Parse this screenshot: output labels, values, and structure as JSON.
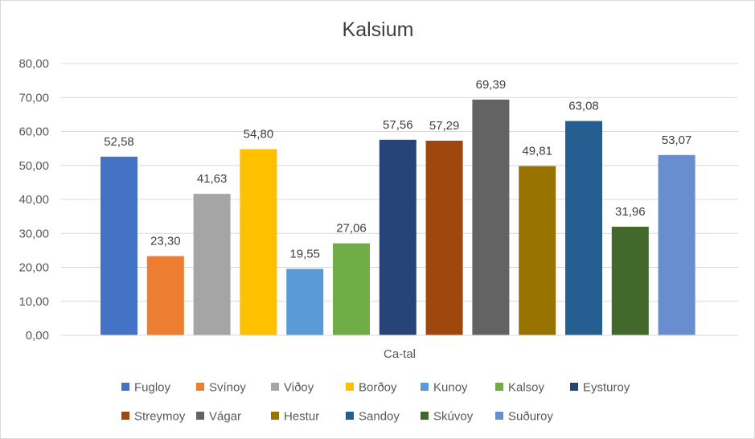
{
  "chart_data": {
    "type": "bar",
    "title": "Kalsium",
    "xlabel": "Ca-tal",
    "ylabel": "",
    "ylim": [
      0,
      80
    ],
    "yticks": [
      "0,00",
      "10,00",
      "20,00",
      "30,00",
      "40,00",
      "50,00",
      "60,00",
      "70,00",
      "80,00"
    ],
    "grid": true,
    "legend_position": "bottom",
    "categories": [
      "Ca-tal"
    ],
    "series": [
      {
        "name": "Fugloy",
        "values": [
          52.58
        ],
        "label": "52,58",
        "color": "#4472C4"
      },
      {
        "name": "Svínoy",
        "values": [
          23.3
        ],
        "label": "23,30",
        "color": "#ED7D31"
      },
      {
        "name": "Viðoy",
        "values": [
          41.63
        ],
        "label": "41,63",
        "color": "#A5A5A5"
      },
      {
        "name": "Borðoy",
        "values": [
          54.8
        ],
        "label": "54,80",
        "color": "#FFC000"
      },
      {
        "name": "Kunoy",
        "values": [
          19.55
        ],
        "label": "19,55",
        "color": "#5B9BD5"
      },
      {
        "name": "Kalsoy",
        "values": [
          27.06
        ],
        "label": "27,06",
        "color": "#70AD47"
      },
      {
        "name": "Eysturoy",
        "values": [
          57.56
        ],
        "label": "57,56",
        "color": "#264478"
      },
      {
        "name": "Streymoy",
        "values": [
          57.29
        ],
        "label": "57,29",
        "color": "#9E480E"
      },
      {
        "name": "Vágar",
        "values": [
          69.39
        ],
        "label": "69,39",
        "color": "#636363"
      },
      {
        "name": "Hestur",
        "values": [
          49.81
        ],
        "label": "49,81",
        "color": "#997300"
      },
      {
        "name": "Sandoy",
        "values": [
          63.08
        ],
        "label": "63,08",
        "color": "#255E91"
      },
      {
        "name": "Skúvoy",
        "values": [
          31.96
        ],
        "label": "31,96",
        "color": "#43682B"
      },
      {
        "name": "Suðuroy",
        "values": [
          53.07
        ],
        "label": "53,07",
        "color": "#698ED0"
      }
    ]
  }
}
